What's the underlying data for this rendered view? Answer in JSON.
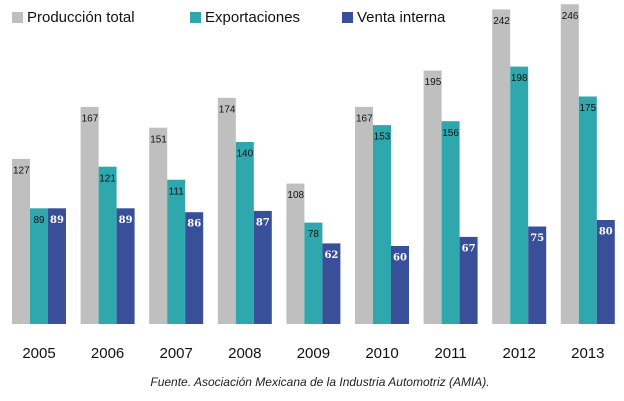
{
  "chart_data": {
    "type": "bar",
    "categories": [
      "2005",
      "2006",
      "2007",
      "2008",
      "2009",
      "2010",
      "2011",
      "2012",
      "2013"
    ],
    "series": [
      {
        "name": "Producción total",
        "color": "#bfbfbf",
        "values": [
          127,
          167,
          151,
          174,
          108,
          167,
          195,
          242,
          246
        ]
      },
      {
        "name": "Exportaciones",
        "color": "#2fa8ad",
        "values": [
          89,
          121,
          111,
          140,
          78,
          153,
          156,
          198,
          175
        ]
      },
      {
        "name": "Venta interna",
        "color": "#3a4f9a",
        "values": [
          89,
          89,
          86,
          87,
          62,
          60,
          67,
          75,
          80
        ]
      }
    ],
    "ylim": [
      0,
      250
    ],
    "note": "Fuente. Asociación Mexicana de la Industria Automotriz (AMIA)."
  }
}
